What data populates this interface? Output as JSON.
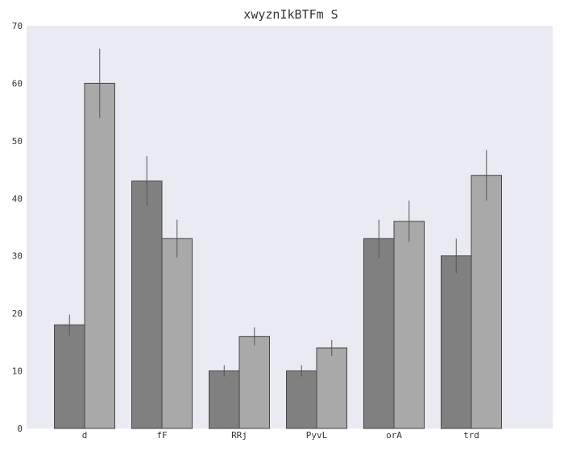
{
  "chart_data": {
    "type": "bar",
    "title": "xwyznIkBTFm S",
    "xlabel": "",
    "ylabel": "",
    "categories": [
      "d",
      "fF",
      "RRj",
      "PyvL",
      "orA",
      "trd"
    ],
    "series": [
      {
        "values": [
          18,
          43,
          10,
          10,
          33,
          30
        ],
        "errors": [
          1.8,
          4.3,
          1.0,
          1.0,
          3.3,
          3.0
        ],
        "color": "#808080"
      },
      {
        "values": [
          60,
          33,
          16,
          14,
          36,
          44
        ],
        "errors": [
          6.0,
          3.3,
          1.6,
          1.4,
          3.6,
          4.4
        ],
        "color": "#a9a9a9"
      }
    ],
    "ylim": [
      0,
      70
    ],
    "yticks": [
      0,
      10,
      20,
      30,
      40,
      50,
      60,
      70
    ],
    "grid": false,
    "background": "#eaeaf2",
    "bar_edge_color": "#444444",
    "error_bar_color": "#555555"
  }
}
